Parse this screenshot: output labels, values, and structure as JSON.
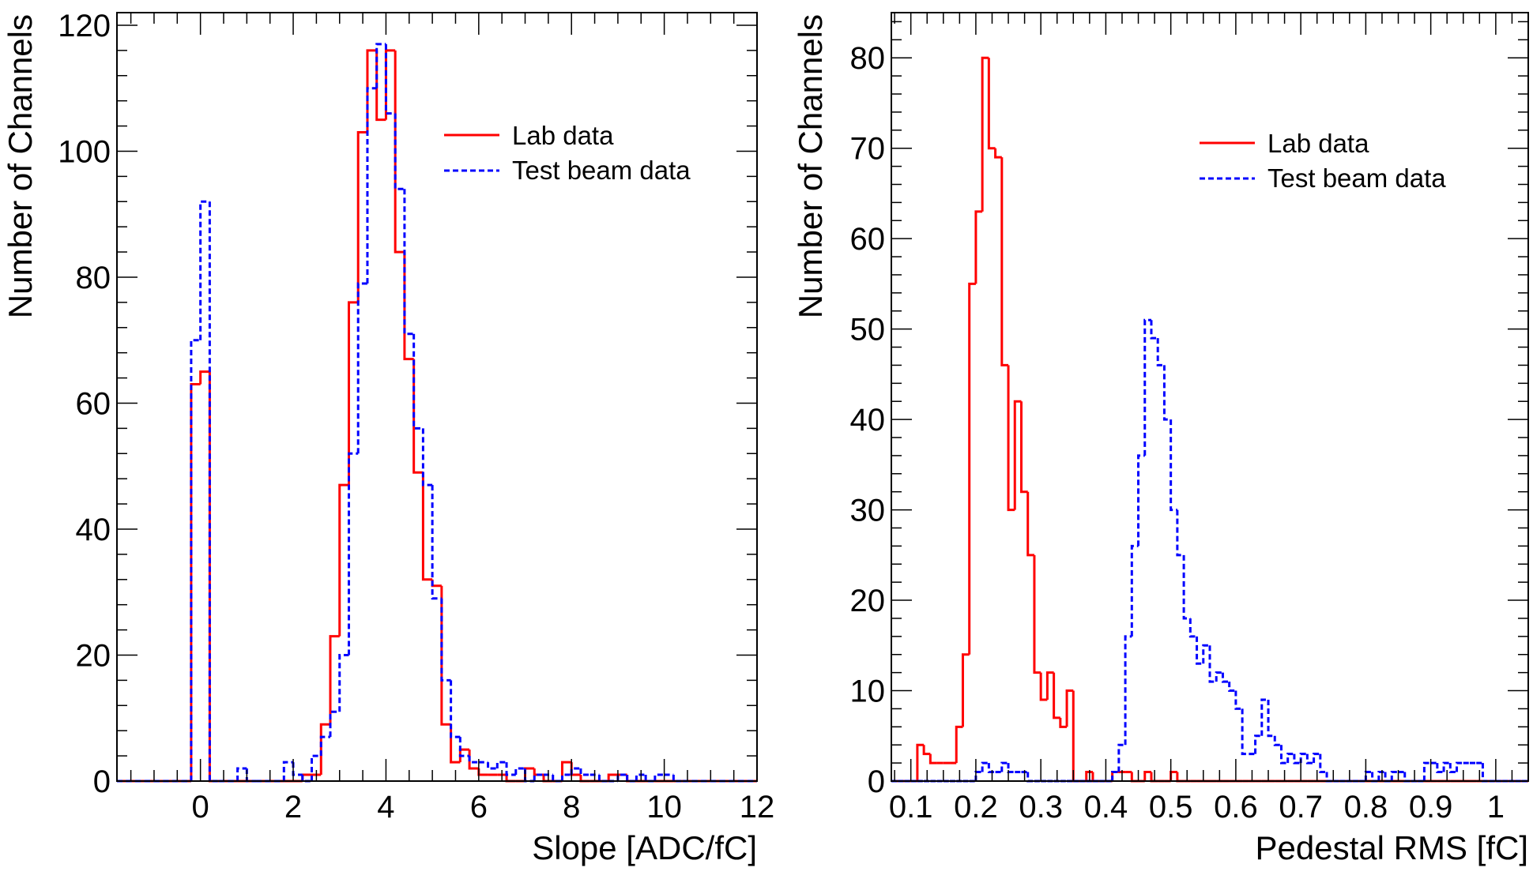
{
  "colors": {
    "lab": "#ff0000",
    "beam": "#0000ff",
    "frame": "#000000"
  },
  "chart_data": [
    {
      "type": "histogram",
      "xlabel": "Slope [ADC/fC]",
      "ylabel": "Number of Channels",
      "xlim": [
        -1.8,
        12.0
      ],
      "ylim": [
        0,
        122
      ],
      "xticks": [
        0,
        2,
        4,
        6,
        8,
        10,
        12
      ],
      "yticks": [
        0,
        20,
        40,
        60,
        80,
        100,
        120
      ],
      "legend": {
        "position": "top-right",
        "entries": [
          "Lab data",
          "Test beam data"
        ]
      },
      "bin_edges": [
        -1.8,
        -1.6,
        -1.4,
        -1.2,
        -1.0,
        -0.8,
        -0.6,
        -0.4,
        -0.2,
        0.0,
        0.2,
        0.4,
        0.6,
        0.8,
        1.0,
        1.2,
        1.4,
        1.6,
        1.8,
        2.0,
        2.2,
        2.4,
        2.6,
        2.8,
        3.0,
        3.2,
        3.4,
        3.6,
        3.8,
        4.0,
        4.2,
        4.4,
        4.6,
        4.8,
        5.0,
        5.2,
        5.4,
        5.6,
        5.8,
        6.0,
        6.2,
        6.4,
        6.6,
        6.8,
        7.0,
        7.2,
        7.4,
        7.6,
        7.8,
        8.0,
        8.2,
        8.4,
        8.6,
        8.8,
        9.0,
        9.2,
        9.4,
        9.6,
        9.8,
        10.0,
        10.2,
        10.4,
        10.6,
        10.8,
        11.0,
        11.2,
        11.4,
        11.6,
        11.8,
        12.0
      ],
      "series": [
        {
          "name": "Lab data",
          "line": "solid",
          "values": [
            0,
            0,
            0,
            0,
            0,
            0,
            0,
            0,
            63,
            65,
            0,
            0,
            0,
            0,
            0,
            0,
            0,
            0,
            0,
            0,
            1,
            1,
            9,
            23,
            47,
            76,
            103,
            116,
            105,
            116,
            84,
            67,
            49,
            32,
            31,
            9,
            3,
            5,
            2,
            1,
            1,
            1,
            0,
            0,
            2,
            1,
            0,
            0,
            3,
            1,
            0,
            0,
            0,
            1,
            1,
            0,
            0,
            0,
            0,
            0,
            0,
            0,
            0,
            0,
            0,
            0,
            0,
            0,
            0
          ]
        },
        {
          "name": "Test beam data",
          "line": "dashed",
          "values": [
            0,
            0,
            0,
            0,
            0,
            0,
            0,
            0,
            70,
            92,
            0,
            0,
            0,
            2,
            0,
            0,
            0,
            0,
            3,
            1,
            0,
            4,
            7,
            11,
            20,
            52,
            79,
            110,
            117,
            106,
            94,
            71,
            56,
            47,
            29,
            16,
            7,
            4,
            3,
            3,
            2,
            3,
            1,
            2,
            0,
            1,
            1,
            0,
            1,
            2,
            1,
            1,
            0,
            0,
            1,
            0,
            1,
            0,
            1,
            1,
            0,
            0,
            0,
            0,
            0,
            0,
            0,
            0,
            0
          ]
        }
      ]
    },
    {
      "type": "histogram",
      "xlabel": "Pedestal RMS [fC]",
      "ylabel": "Number of Channels",
      "xlim": [
        0.07,
        1.05
      ],
      "ylim": [
        0,
        85
      ],
      "xticks": [
        0.1,
        0.2,
        0.3,
        0.4,
        0.5,
        0.6,
        0.7,
        0.8,
        0.9,
        1
      ],
      "xtick_labels": [
        "0.1",
        "0.2",
        "0.3",
        "0.4",
        "0.5",
        "0.6",
        "0.7",
        "0.8",
        "0.9",
        "1"
      ],
      "yticks": [
        0,
        10,
        20,
        30,
        40,
        50,
        60,
        70,
        80
      ],
      "legend": {
        "position": "top-right",
        "entries": [
          "Lab data",
          "Test beam data"
        ]
      },
      "bin_edges": [
        0.07,
        0.08,
        0.09,
        0.1,
        0.11,
        0.12,
        0.13,
        0.14,
        0.15,
        0.16,
        0.17,
        0.18,
        0.19,
        0.2,
        0.21,
        0.22,
        0.23,
        0.24,
        0.25,
        0.26,
        0.27,
        0.28,
        0.29,
        0.3,
        0.31,
        0.32,
        0.33,
        0.34,
        0.35,
        0.36,
        0.37,
        0.38,
        0.39,
        0.4,
        0.41,
        0.42,
        0.43,
        0.44,
        0.45,
        0.46,
        0.47,
        0.48,
        0.49,
        0.5,
        0.51,
        0.52,
        0.53,
        0.54,
        0.55,
        0.56,
        0.57,
        0.58,
        0.59,
        0.6,
        0.61,
        0.62,
        0.63,
        0.64,
        0.65,
        0.66,
        0.67,
        0.68,
        0.69,
        0.7,
        0.71,
        0.72,
        0.73,
        0.74,
        0.75,
        0.76,
        0.77,
        0.78,
        0.79,
        0.8,
        0.81,
        0.82,
        0.83,
        0.84,
        0.85,
        0.86,
        0.87,
        0.88,
        0.89,
        0.9,
        0.91,
        0.92,
        0.93,
        0.94,
        0.95,
        0.96,
        0.97,
        0.98,
        0.99,
        1.0,
        1.01,
        1.02,
        1.03,
        1.04,
        1.05
      ],
      "series": [
        {
          "name": "Lab data",
          "line": "solid",
          "values": [
            0,
            0,
            0,
            0,
            4,
            3,
            2,
            2,
            2,
            2,
            6,
            14,
            55,
            63,
            80,
            70,
            69,
            46,
            30,
            42,
            32,
            25,
            12,
            9,
            12,
            7,
            6,
            10,
            0,
            0,
            1,
            0,
            0,
            0,
            1,
            1,
            1,
            0,
            0,
            1,
            0,
            0,
            0,
            1,
            0,
            0,
            0,
            0,
            0,
            0,
            0,
            0,
            0,
            0,
            0,
            0,
            0,
            0,
            0,
            0,
            0,
            0,
            0,
            0,
            0,
            0,
            0,
            0,
            0,
            0,
            0,
            0,
            0,
            0,
            0,
            0,
            0,
            0,
            0,
            0,
            0,
            0,
            0,
            0,
            0,
            0,
            0,
            0,
            0,
            0,
            0,
            0,
            0,
            0,
            0,
            0,
            0,
            0
          ]
        },
        {
          "name": "Test beam data",
          "line": "dashed",
          "values": [
            0,
            0,
            0,
            0,
            0,
            0,
            0,
            0,
            0,
            0,
            0,
            0,
            0,
            1,
            2,
            1,
            1,
            2,
            1,
            1,
            1,
            0,
            0,
            0,
            0,
            0,
            0,
            0,
            0,
            0,
            0,
            0,
            0,
            0,
            1,
            4,
            16,
            26,
            36,
            51,
            49,
            46,
            40,
            30,
            25,
            18,
            16,
            13,
            15,
            11,
            12,
            11,
            10,
            8,
            3,
            3,
            5,
            9,
            5,
            4,
            2,
            3,
            2,
            3,
            2,
            3,
            1,
            0,
            0,
            0,
            0,
            0,
            0,
            1,
            0,
            1,
            0,
            1,
            1,
            0,
            0,
            0,
            2,
            2,
            1,
            2,
            1,
            2,
            2,
            2,
            2,
            0,
            0,
            0,
            0,
            0,
            0,
            0
          ]
        }
      ]
    }
  ]
}
